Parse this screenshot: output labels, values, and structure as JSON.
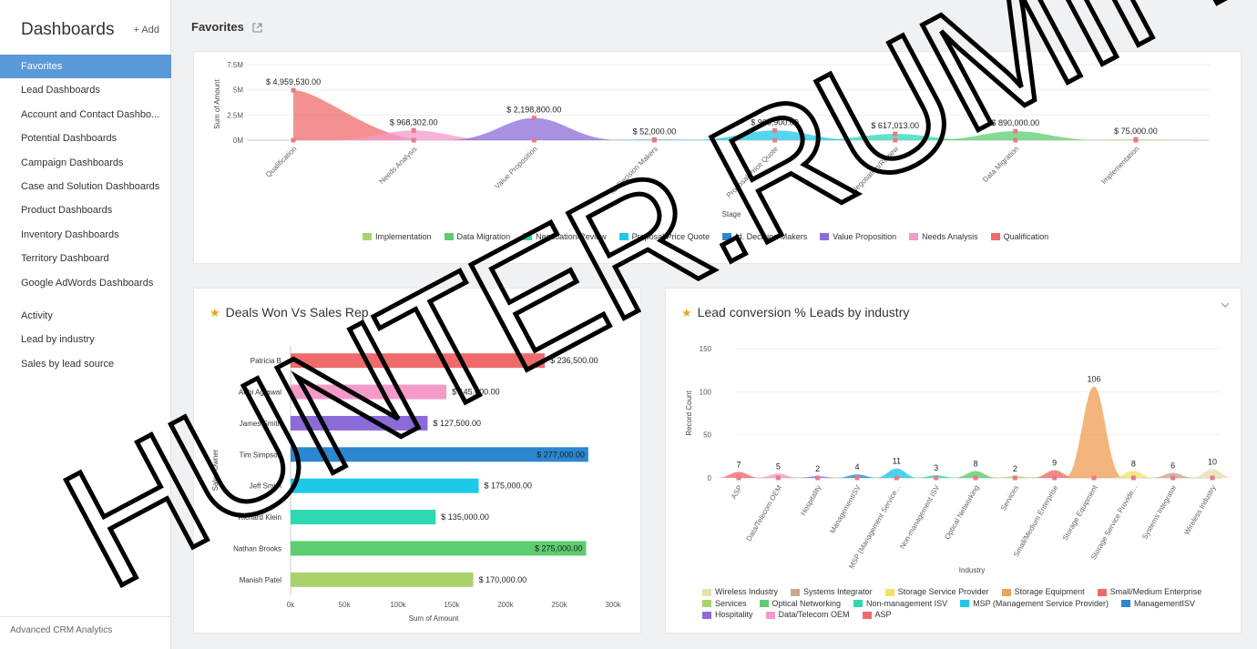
{
  "sidebar": {
    "title": "Dashboards",
    "add_label": "+ Add",
    "items": [
      "Favorites",
      "Lead Dashboards",
      "Account and Contact Dashbo...",
      "Potential Dashboards",
      "Campaign Dashboards",
      "Case and Solution Dashboards",
      "Product Dashboards",
      "Inventory Dashboards",
      "Territory Dashboard",
      "Google AdWords Dashboards"
    ],
    "active_index": 0,
    "secondary_items": [
      "Activity",
      "Lead by industry",
      "Sales by lead source"
    ],
    "footer": "Advanced CRM Analytics"
  },
  "page": {
    "title": "Favorites"
  },
  "chart_data": [
    {
      "type": "area",
      "ylabel": "Sum of Amount",
      "xlabel": "Stage",
      "yticks": [
        "0M",
        "2.5M",
        "5M",
        "7.5M"
      ],
      "ylim": [
        0,
        7500000
      ],
      "categories": [
        "Qualification",
        "Needs Analysis",
        "Value Proposition",
        "Id. Decision Makers",
        "Proposal/Price Quote",
        "Negotiation/Review",
        "Data Migration",
        "Implementation"
      ],
      "values": [
        4959530,
        968302,
        2198800,
        52000,
        966900,
        617013,
        890000,
        75000
      ],
      "value_labels": [
        "$ 4,959,530.00",
        "$ 968,302.00",
        "$ 2,198,800.00",
        "$ 52,000.00",
        "$ 966,900.00",
        "$ 617,013.00",
        "$ 890,000.00",
        "$ 75,000.00"
      ],
      "colors": [
        "#ef6b6b",
        "#f49ac9",
        "#8c6bd9",
        "#2a87d0",
        "#1ec8e8",
        "#2ed8b0",
        "#5ccd6e",
        "#a9d36a"
      ],
      "legend": [
        {
          "label": "Implementation",
          "color": "#a9d36a"
        },
        {
          "label": "Data Migration",
          "color": "#5ccd6e"
        },
        {
          "label": "Negotiation/Review",
          "color": "#2ed8b0"
        },
        {
          "label": "Proposal/Price Quote",
          "color": "#1ec8e8"
        },
        {
          "label": "Id. Decision Makers",
          "color": "#2a87d0"
        },
        {
          "label": "Value Proposition",
          "color": "#8c6bd9"
        },
        {
          "label": "Needs Analysis",
          "color": "#f49ac9"
        },
        {
          "label": "Qualification",
          "color": "#ef6b6b"
        }
      ],
      "grid": true
    },
    {
      "type": "bar",
      "title": "Deals Won Vs Sales Rep",
      "xlabel": "Sum of Amount",
      "ylabel": "Sales Owner",
      "orientation": "horizontal",
      "categories": [
        "Patricia B",
        "Arthi Agrawal",
        "James Smith",
        "Tim Simpson",
        "Jeff Smith",
        "Richard Klein",
        "Nathan Brooks",
        "Manish Patel"
      ],
      "values": [
        236500,
        145000,
        127500,
        277000,
        175000,
        135000,
        275000,
        170000
      ],
      "value_labels": [
        "$ 236,500.00",
        "$ 145,000.00",
        "$ 127,500.00",
        "$ 277,000.00",
        "$ 175,000.00",
        "$ 135,000.00",
        "$ 275,000.00",
        "$ 170,000.00"
      ],
      "colors": [
        "#ef6b6b",
        "#f49ac9",
        "#8c6bd9",
        "#2a87d0",
        "#1ec8e8",
        "#2ed8b0",
        "#5ccd6e",
        "#a9d36a"
      ],
      "xticks": [
        "0k",
        "50k",
        "100k",
        "150k",
        "200k",
        "250k",
        "300k"
      ],
      "xlim": [
        0,
        300000
      ]
    },
    {
      "type": "area",
      "title": "Lead conversion % Leads by industry",
      "xlabel": "Industry",
      "ylabel": "Record Count",
      "yticks": [
        "0",
        "50",
        "100",
        "150"
      ],
      "ylim": [
        0,
        150
      ],
      "categories": [
        "ASP",
        "Data/Telecom OEM",
        "Hospitality",
        "ManagementISV",
        "MSP (Management Service...",
        "Non-management ISV",
        "Optical Networking",
        "Services",
        "Small/Medium Enterprise",
        "Storage Equipment",
        "Storage Service Provide...",
        "Systems Integrator",
        "Wireless Industry"
      ],
      "values": [
        7,
        5,
        2,
        4,
        11,
        3,
        8,
        2,
        9,
        106,
        8,
        6,
        10
      ],
      "colors": [
        "#ef6b6b",
        "#f49ac9",
        "#8c6bd9",
        "#2a87d0",
        "#1ec8e8",
        "#2ed8b0",
        "#5ccd6e",
        "#a9d36a",
        "#ef6b6b",
        "#f0a35a",
        "#f5e06a",
        "#c9a98e",
        "#e8dfb0"
      ],
      "legend": [
        {
          "label": "Wireless Industry",
          "color": "#e8dfb0"
        },
        {
          "label": "Systems Integrator",
          "color": "#c9a98e"
        },
        {
          "label": "Storage Service Provider",
          "color": "#f5e06a"
        },
        {
          "label": "Storage Equipment",
          "color": "#f0a35a"
        },
        {
          "label": "Small/Medium Enterprise",
          "color": "#ef6b6b"
        },
        {
          "label": "Services",
          "color": "#a9d36a"
        },
        {
          "label": "Optical Networking",
          "color": "#5ccd6e"
        },
        {
          "label": "Non-management ISV",
          "color": "#2ed8b0"
        },
        {
          "label": "MSP (Management Service Provider)",
          "color": "#1ec8e8"
        },
        {
          "label": "ManagementISV",
          "color": "#2a87d0"
        },
        {
          "label": "Hospitality",
          "color": "#8c6bd9"
        },
        {
          "label": "Data/Telecom OEM",
          "color": "#f49ac9"
        },
        {
          "label": "ASP",
          "color": "#ef6b6b"
        }
      ]
    }
  ],
  "watermark": "HUNTER.RUMIP.COM"
}
